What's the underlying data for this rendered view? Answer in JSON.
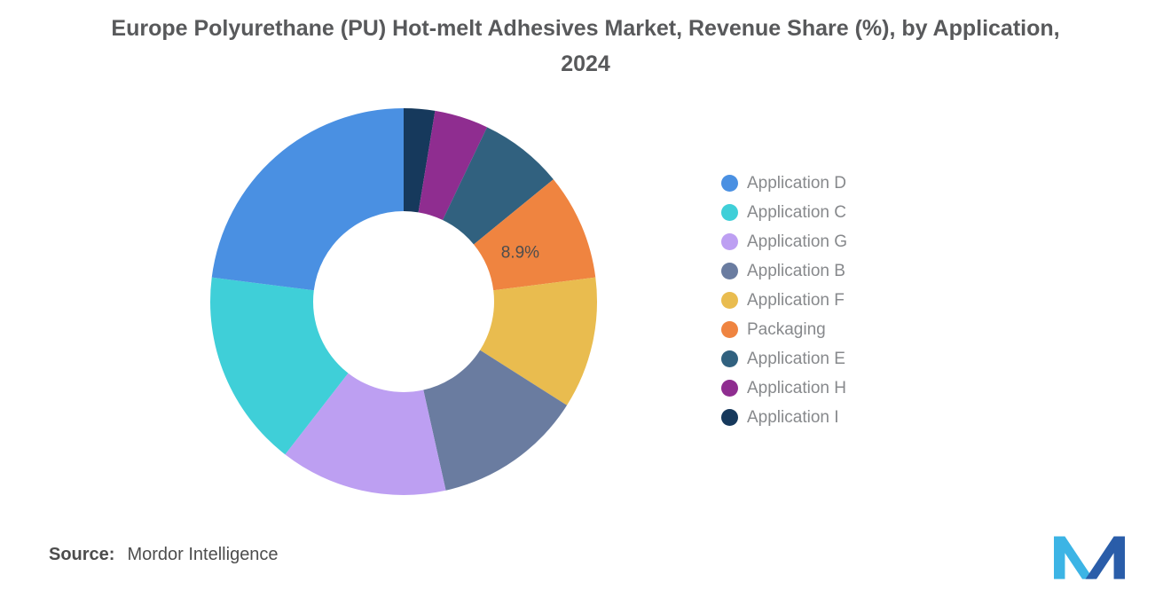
{
  "source": {
    "label": "Source:",
    "value": "Mordor Intelligence"
  },
  "chart_data": {
    "type": "pie",
    "donut": true,
    "inner_radius_ratio": 0.47,
    "start_angle_deg": -90,
    "draw_order": "smallest-first-clockwise-from-top",
    "legend_position": "right",
    "title": "Europe Polyurethane (PU) Hot-melt Adhesives Market, Revenue Share (%), by Application, 2024",
    "segments": [
      {
        "label": "Application D",
        "value": 23.0,
        "color": "#4a90e2"
      },
      {
        "label": "Application C",
        "value": 16.5,
        "color": "#3fcfd8"
      },
      {
        "label": "Application G",
        "value": 14.0,
        "color": "#bd9ff2"
      },
      {
        "label": "Application B",
        "value": 12.5,
        "color": "#6a7ca0"
      },
      {
        "label": "Application F",
        "value": 11.0,
        "color": "#e9bc4f"
      },
      {
        "label": "Packaging",
        "value": 8.9,
        "color": "#ef8440",
        "data_label": "8.9%"
      },
      {
        "label": "Application E",
        "value": 7.0,
        "color": "#31617f"
      },
      {
        "label": "Application H",
        "value": 4.5,
        "color": "#8f2d90"
      },
      {
        "label": "Application I",
        "value": 2.6,
        "color": "#16395c"
      }
    ]
  },
  "logo": {
    "name": "mordor-intelligence-logo",
    "color_light": "#3cb4e5",
    "color_dark": "#2a5da9"
  }
}
